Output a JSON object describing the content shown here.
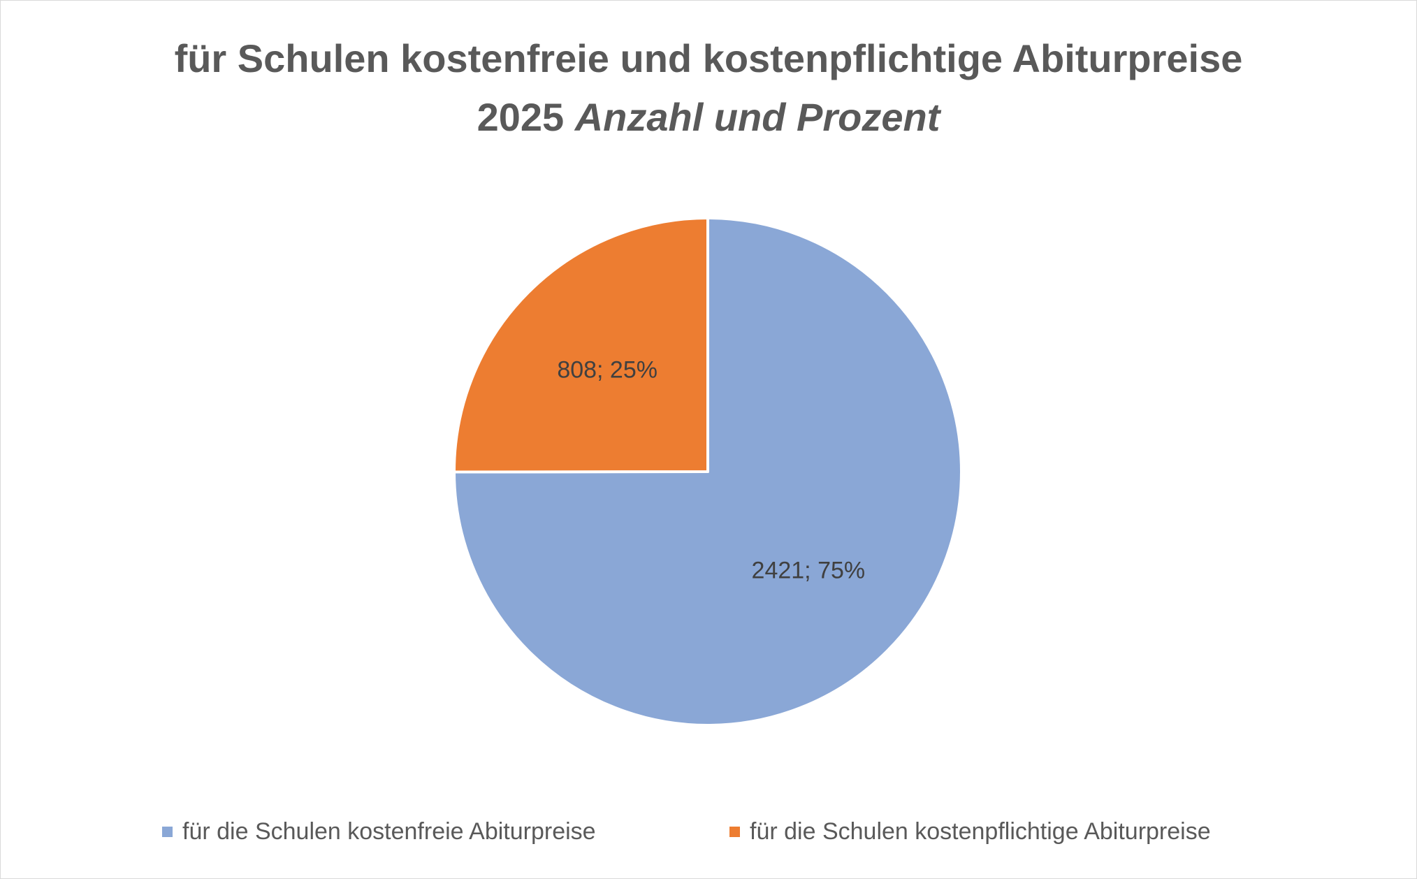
{
  "chart_data": {
    "type": "pie",
    "title": "für Schulen kostenfreie und kostenpflichtige Abiturpreise",
    "subtitle_year": "2025",
    "subtitle_em": "Anzahl und Prozent",
    "slices": [
      {
        "name": "für die Schulen kostenfreie Abiturpreise",
        "value": 2421,
        "percent": 75,
        "label": "2421; 75%",
        "color": "#8aa7d6"
      },
      {
        "name": "für die Schulen kostenpflichtige Abiturpreise",
        "value": 808,
        "percent": 25,
        "label": "808; 25%",
        "color": "#ed7d31"
      }
    ],
    "legend_position": "bottom"
  }
}
